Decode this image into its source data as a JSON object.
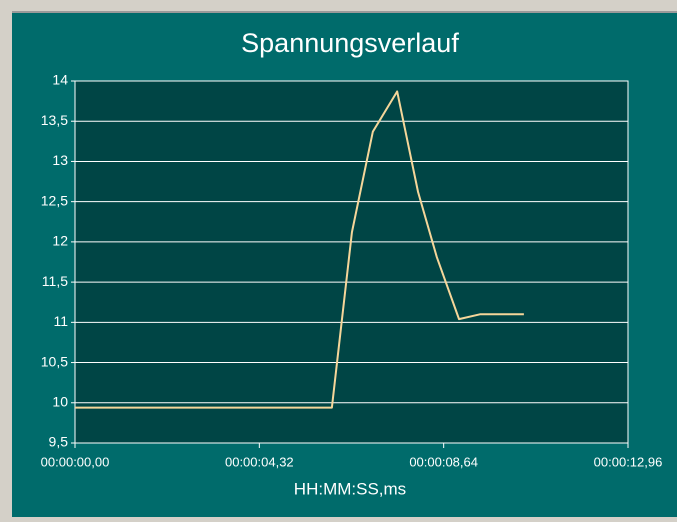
{
  "chart_data": {
    "type": "line",
    "title": "Spannungsverlauf",
    "xlabel": "HH:MM:SS,ms",
    "x": [
      0,
      6.02,
      6.49,
      6.98,
      7.55,
      8.04,
      8.48,
      9.0,
      9.49,
      10.52
    ],
    "series": [
      {
        "color": "#f5d69a",
        "values": [
          9.94,
          9.94,
          12.12,
          13.37,
          13.87,
          12.62,
          11.81,
          11.04,
          11.1,
          11.1
        ]
      }
    ],
    "xlim": [
      0,
      12.96
    ],
    "xticks": [
      {
        "value": 0,
        "label": "00:00:00,00"
      },
      {
        "value": 4.32,
        "label": "00:00:04,32"
      },
      {
        "value": 8.64,
        "label": "00:00:08,64"
      },
      {
        "value": 12.96,
        "label": "00:00:12,96"
      }
    ],
    "ylim": [
      9.5,
      14
    ],
    "yticks": [
      {
        "value": 9.5,
        "label": "9,5"
      },
      10,
      {
        "value": 10.5,
        "label": "10,5"
      },
      11,
      {
        "value": 11.5,
        "label": "11,5"
      },
      12,
      {
        "value": 12.5,
        "label": "12,5"
      },
      13,
      {
        "value": 13.5,
        "label": "13,5"
      },
      14
    ],
    "grid": true
  }
}
